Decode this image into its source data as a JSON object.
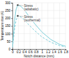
{
  "chart_data": {
    "type": "line",
    "xlabel": "Notch distance (mm)",
    "ylabel": "Temperature rise (K)",
    "x": [
      0.0,
      0.03,
      0.07,
      0.12,
      0.18,
      0.28,
      0.4,
      0.55,
      0.75,
      1.0,
      1.3,
      1.6,
      1.8
    ],
    "series": [
      {
        "color": "#7dcfda",
        "line_style": "solid",
        "values": [
          10,
          80,
          180,
          255,
          285,
          278,
          255,
          215,
          165,
          110,
          62,
          30,
          18
        ]
      },
      {
        "color": "#7dcfda",
        "line_style": "dashed",
        "values": [
          10,
          55,
          125,
          185,
          215,
          208,
          190,
          158,
          120,
          78,
          44,
          22,
          13
        ]
      }
    ],
    "xlim": [
      0,
      1.8
    ],
    "ylim": [
      0,
      300
    ],
    "xticks": [
      0,
      0.2,
      0.4,
      0.6,
      0.8,
      1,
      1.2,
      1.4,
      1.6,
      1.8
    ],
    "yticks": [
      0,
      50,
      100,
      150,
      200,
      250,
      300
    ],
    "grid": true,
    "annotations": [
      {
        "text": "Stress\n(adiabatic)",
        "x": 0.18,
        "y": 285,
        "marker": "circle",
        "color": "#333333"
      },
      {
        "text": "Stress\n(isothermal)",
        "x": 0.18,
        "y": 215,
        "marker": "circle",
        "color": "#333333"
      }
    ]
  }
}
